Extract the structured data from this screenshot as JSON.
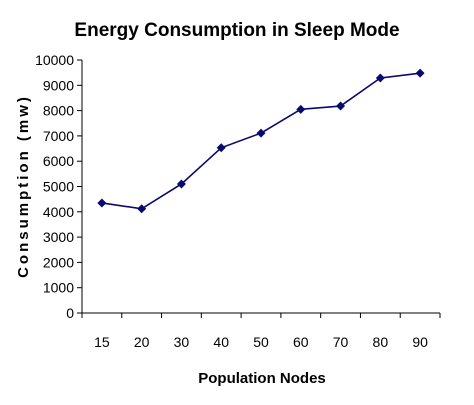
{
  "chart_data": {
    "type": "line",
    "title": "Energy Consumption in Sleep Mode",
    "xlabel": "Population Nodes",
    "ylabel": "Consumption (mw)",
    "categories": [
      "15",
      "20",
      "30",
      "40",
      "50",
      "60",
      "70",
      "80",
      "90"
    ],
    "series": [
      {
        "name": "",
        "values": [
          4350,
          4120,
          5100,
          6530,
          7110,
          8050,
          8180,
          9290,
          9480
        ]
      }
    ],
    "ylim": [
      0,
      10000
    ],
    "yticks": [
      "0",
      "1000",
      "2000",
      "3000",
      "4000",
      "5000",
      "6000",
      "7000",
      "8000",
      "9000",
      "10000"
    ],
    "grid": false,
    "legend": "none",
    "line_color": "#0a0a6e",
    "marker": "diamond"
  }
}
